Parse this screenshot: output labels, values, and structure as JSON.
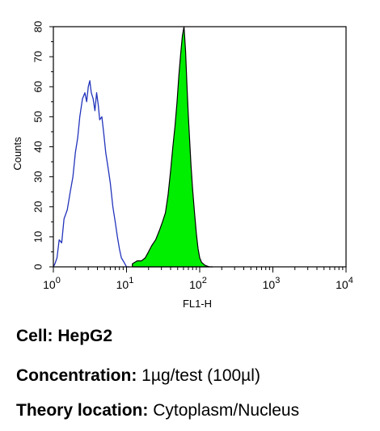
{
  "chart_data": {
    "type": "area",
    "xlabel": "FL1-H",
    "ylabel": "Counts",
    "x_scale": "log",
    "xlim": [
      1,
      10000
    ],
    "ylim": [
      0,
      80
    ],
    "x_ticks": [
      {
        "value": 1,
        "base": "10",
        "exp": "0"
      },
      {
        "value": 10,
        "base": "10",
        "exp": "1"
      },
      {
        "value": 100,
        "base": "10",
        "exp": "2"
      },
      {
        "value": 1000,
        "base": "10",
        "exp": "3"
      },
      {
        "value": 10000,
        "base": "10",
        "exp": "4"
      }
    ],
    "y_ticks": [
      "0",
      "10",
      "20",
      "30",
      "40",
      "50",
      "60",
      "70",
      "80"
    ],
    "series": [
      {
        "style": "outline",
        "color": "#2233bb",
        "x": [
          1.0,
          1.05,
          1.12,
          1.2,
          1.3,
          1.4,
          1.55,
          1.7,
          1.85,
          2.0,
          2.15,
          2.3,
          2.5,
          2.7,
          2.85,
          3.0,
          3.15,
          3.3,
          3.5,
          3.7,
          3.9,
          4.1,
          4.3,
          4.6,
          4.9,
          5.2,
          5.6,
          6.0,
          6.5,
          7.0,
          7.5,
          8.0,
          8.5,
          9.0,
          9.5,
          10.0,
          11.0
        ],
        "y": [
          0,
          1,
          3,
          9,
          8,
          16,
          19,
          25,
          30,
          38,
          43,
          50,
          56,
          58,
          55,
          60,
          62,
          58,
          56,
          52,
          58,
          54,
          49,
          50,
          44,
          38,
          33,
          28,
          20,
          15,
          10,
          6,
          3,
          2,
          1,
          0,
          0
        ]
      },
      {
        "style": "filled",
        "color": "#00ee00",
        "x": [
          12,
          14,
          16,
          18,
          20,
          22,
          25,
          28,
          31,
          34,
          37,
          40,
          43,
          46,
          49,
          52,
          55,
          58,
          61,
          64,
          67,
          70,
          73,
          76,
          80,
          85,
          90,
          95,
          100,
          106,
          112,
          118,
          125,
          135,
          150
        ],
        "y": [
          1,
          2,
          2,
          3,
          5,
          7,
          9,
          12,
          15,
          18,
          24,
          32,
          40,
          47,
          55,
          64,
          71,
          77,
          80,
          72,
          60,
          50,
          42,
          34,
          26,
          18,
          11,
          6,
          3,
          1.5,
          1,
          0.5,
          0.3,
          0,
          0
        ]
      }
    ]
  },
  "captions": {
    "cell_label": "Cell:",
    "cell_value": "HepG2",
    "concentration_label": "Concentration:",
    "concentration_value": "1µg/test (100µl)",
    "theory_label": "Theory location:",
    "theory_value": "Cytoplasm/Nucleus"
  }
}
